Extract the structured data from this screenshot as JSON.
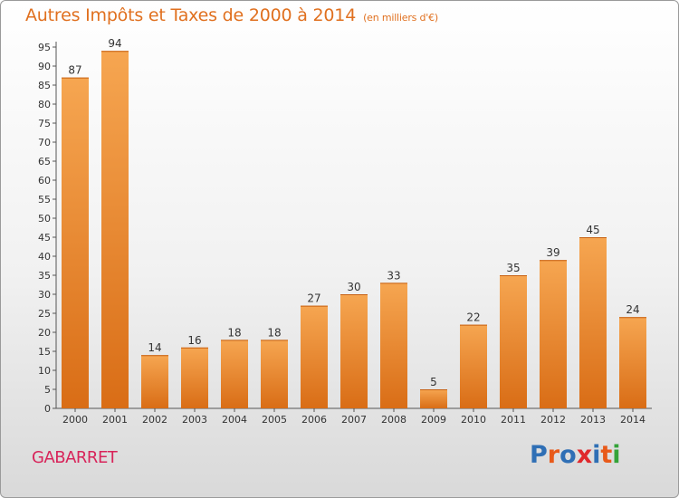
{
  "title": "Autres Impôts et Taxes de 2000 à 2014",
  "title_unit": "(en milliers d'€)",
  "commune": "GABARRET",
  "logo_text": "Proxiti",
  "colors": {
    "title": "#e0701f",
    "commune": "#d8245a",
    "bar_light": "#f6a651",
    "bar_dark": "#d96d16",
    "logo": [
      "#2f6fb5",
      "#e85a1a",
      "#2f6fb5",
      "#e0282c",
      "#2f6fb5",
      "#e85a1a",
      "#34a338"
    ]
  },
  "chart_data": {
    "type": "bar",
    "categories": [
      "2000",
      "2001",
      "2002",
      "2003",
      "2004",
      "2005",
      "2006",
      "2007",
      "2008",
      "2009",
      "2010",
      "2011",
      "2012",
      "2013",
      "2014"
    ],
    "values": [
      87,
      94,
      14,
      16,
      18,
      18,
      27,
      30,
      33,
      5,
      22,
      35,
      39,
      45,
      24
    ],
    "ylim": [
      0,
      95
    ],
    "yticks": [
      0,
      5,
      10,
      15,
      20,
      25,
      30,
      35,
      40,
      45,
      50,
      55,
      60,
      65,
      70,
      75,
      80,
      85,
      90,
      95
    ],
    "grid": false,
    "data_labels": true
  }
}
